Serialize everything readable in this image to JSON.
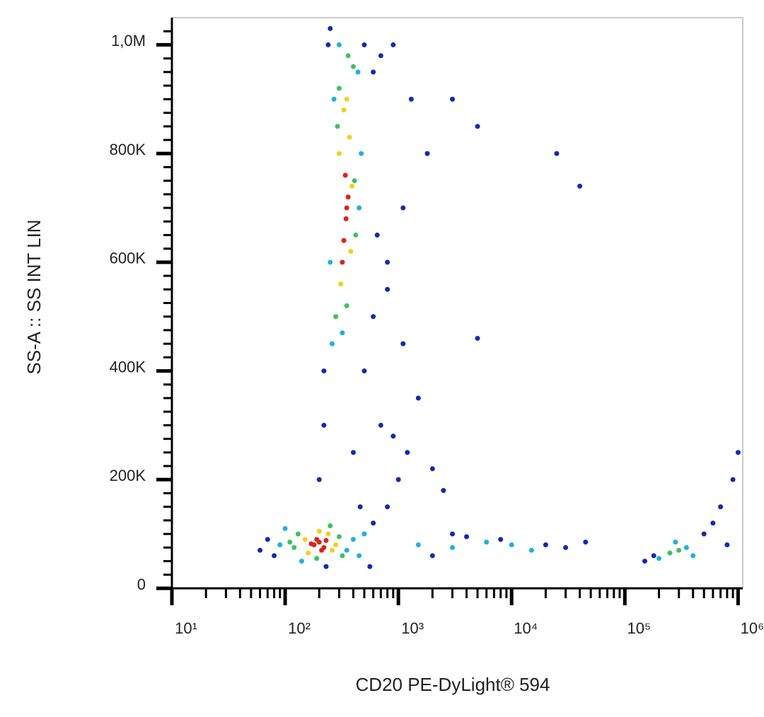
{
  "chart_data": {
    "type": "scatter",
    "x_label": "CD20 PE-DyLight® 594",
    "y_label": "SS-A :: SS INT LIN",
    "x_log": true,
    "xlim": [
      10,
      1100000
    ],
    "ylim": [
      0,
      1050000
    ],
    "xticks": [
      {
        "value": 10,
        "label": "10¹"
      },
      {
        "value": 100,
        "label": "10²"
      },
      {
        "value": 1000,
        "label": "10³"
      },
      {
        "value": 10000,
        "label": "10⁴"
      },
      {
        "value": 100000,
        "label": "10⁵"
      },
      {
        "value": 1000000,
        "label": "10⁶"
      }
    ],
    "x_minor_ticks": [
      20,
      30,
      40,
      50,
      60,
      70,
      80,
      90,
      200,
      300,
      400,
      500,
      600,
      700,
      800,
      900,
      2000,
      3000,
      4000,
      5000,
      6000,
      7000,
      8000,
      9000,
      20000,
      30000,
      40000,
      50000,
      60000,
      70000,
      80000,
      90000,
      200000,
      300000,
      400000,
      500000,
      600000,
      700000,
      800000,
      900000
    ],
    "yticks": [
      0,
      {
        "value": 200000,
        "label": "200K"
      },
      {
        "value": 400000,
        "label": "400K"
      },
      {
        "value": 600000,
        "label": "600K"
      },
      {
        "value": 800000,
        "label": "800K"
      },
      {
        "value": 1000000,
        "label": "1,0M"
      }
    ],
    "y_minor_ticks": [
      25000,
      50000,
      75000,
      100000,
      125000,
      150000,
      175000,
      225000,
      250000,
      275000,
      300000,
      325000,
      350000,
      375000,
      425000,
      450000,
      475000,
      500000,
      525000,
      550000,
      575000,
      625000,
      650000,
      675000,
      700000,
      725000,
      750000,
      775000,
      825000,
      850000,
      875000,
      900000,
      925000,
      950000,
      975000,
      1025000
    ],
    "series": [
      {
        "color": "#1428b4",
        "x": [
          60,
          70,
          80,
          600,
          800,
          1000,
          1200,
          2000,
          2500,
          700,
          900,
          1500,
          500,
          600,
          800,
          1100,
          1800,
          3000,
          5000,
          8000,
          20000,
          30000,
          45000,
          2000,
          3000,
          4000,
          220,
          240,
          500,
          600,
          250,
          700,
          1100,
          800,
          650,
          180000,
          500000,
          700000,
          900000,
          1000000,
          600000,
          800000,
          150000,
          900,
          1300,
          220,
          200,
          5000,
          25000,
          40000,
          400,
          460,
          230,
          560
        ],
        "values": [
          70000,
          90000,
          60000,
          120000,
          150000,
          200000,
          250000,
          220000,
          180000,
          300000,
          280000,
          350000,
          400000,
          500000,
          600000,
          700000,
          800000,
          900000,
          850000,
          90000,
          80000,
          75000,
          85000,
          60000,
          100000,
          95000,
          400000,
          1000000,
          1000000,
          950000,
          1030000,
          980000,
          450000,
          550000,
          650000,
          60000,
          100000,
          150000,
          200000,
          250000,
          120000,
          80000,
          50000,
          1000000,
          900000,
          300000,
          200000,
          460000,
          800000,
          740000,
          250000,
          150000,
          40000,
          40000
        ]
      },
      {
        "color": "#20b0e0",
        "x": [
          90,
          350,
          100,
          400,
          140,
          450,
          500,
          260,
          450,
          250,
          470,
          270,
          300,
          440,
          320,
          1500,
          3000,
          6000,
          10000,
          15000,
          200000,
          350000,
          400000,
          280000
        ],
        "values": [
          80000,
          70000,
          110000,
          90000,
          50000,
          60000,
          100000,
          450000,
          700000,
          600000,
          800000,
          900000,
          1000000,
          950000,
          470000,
          80000,
          75000,
          85000,
          80000,
          70000,
          55000,
          75000,
          60000,
          85000
        ]
      },
      {
        "color": "#40c060",
        "x": [
          120,
          300,
          130,
          320,
          190,
          250,
          110,
          280,
          420,
          290,
          410,
          300,
          400,
          350,
          360,
          250000,
          300000
        ],
        "values": [
          75000,
          95000,
          100000,
          60000,
          55000,
          115000,
          85000,
          500000,
          650000,
          850000,
          750000,
          920000,
          960000,
          520000,
          980000,
          65000,
          70000
        ]
      },
      {
        "color": "#f0d020",
        "x": [
          150,
          260,
          160,
          240,
          200,
          280,
          310,
          380,
          300,
          370,
          330,
          390,
          350
        ],
        "values": [
          90000,
          70000,
          65000,
          100000,
          105000,
          80000,
          560000,
          620000,
          800000,
          830000,
          880000,
          740000,
          900000
        ]
      },
      {
        "color": "#e0201b",
        "x": [
          180,
          200,
          220,
          190,
          210,
          170,
          230,
          330,
          350,
          340,
          320,
          360,
          345
        ],
        "values": [
          80000,
          85000,
          75000,
          90000,
          70000,
          82000,
          88000,
          640000,
          700000,
          760000,
          600000,
          720000,
          680000
        ]
      }
    ]
  }
}
